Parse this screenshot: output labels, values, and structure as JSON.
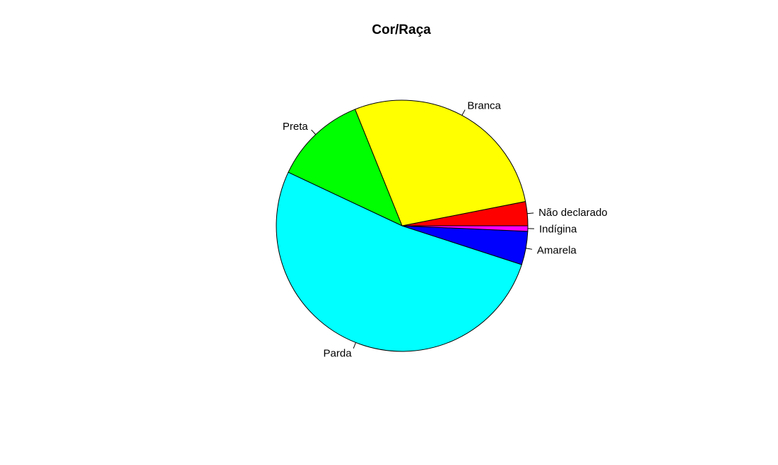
{
  "chart_data": {
    "type": "pie",
    "title": "Cor/Raça",
    "direction": "counterclockwise",
    "start_angle_degrees": 0,
    "slices": [
      {
        "label": "Não declarado",
        "value": 3.1,
        "color": "#FF0000"
      },
      {
        "label": "Branca",
        "value": 28.0,
        "color": "#FFFF00"
      },
      {
        "label": "Preta",
        "value": 11.9,
        "color": "#00FF00"
      },
      {
        "label": "Parda",
        "value": 52.0,
        "color": "#00FFFF"
      },
      {
        "label": "Amarela",
        "value": 4.3,
        "color": "#0000FF"
      },
      {
        "label": "Indígina",
        "value": 0.7,
        "color": "#FF00FF"
      }
    ]
  }
}
